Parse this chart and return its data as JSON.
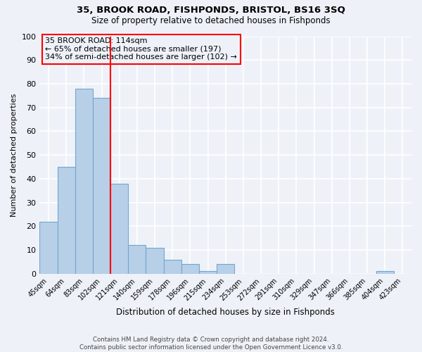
{
  "title": "35, BROOK ROAD, FISHPONDS, BRISTOL, BS16 3SQ",
  "subtitle": "Size of property relative to detached houses in Fishponds",
  "xlabel": "Distribution of detached houses by size in Fishponds",
  "ylabel": "Number of detached properties",
  "bar_labels": [
    "45sqm",
    "64sqm",
    "83sqm",
    "102sqm",
    "121sqm",
    "140sqm",
    "159sqm",
    "178sqm",
    "196sqm",
    "215sqm",
    "234sqm",
    "253sqm",
    "272sqm",
    "291sqm",
    "310sqm",
    "329sqm",
    "347sqm",
    "366sqm",
    "385sqm",
    "404sqm",
    "423sqm"
  ],
  "bar_values": [
    22,
    45,
    78,
    74,
    38,
    12,
    11,
    6,
    4,
    1,
    4,
    0,
    0,
    0,
    0,
    0,
    0,
    0,
    0,
    1,
    0
  ],
  "bar_color": "#b8cfe8",
  "bar_edge_color": "#6fa8d0",
  "vline_color": "red",
  "annotation_title": "35 BROOK ROAD: 114sqm",
  "annotation_line1": "← 65% of detached houses are smaller (197)",
  "annotation_line2": "34% of semi-detached houses are larger (102) →",
  "annotation_box_edge": "red",
  "ylim": [
    0,
    100
  ],
  "yticks": [
    0,
    10,
    20,
    30,
    40,
    50,
    60,
    70,
    80,
    90,
    100
  ],
  "footer_line1": "Contains HM Land Registry data © Crown copyright and database right 2024.",
  "footer_line2": "Contains public sector information licensed under the Open Government Licence v3.0.",
  "background_color": "#eef2f8",
  "grid_color": "white"
}
